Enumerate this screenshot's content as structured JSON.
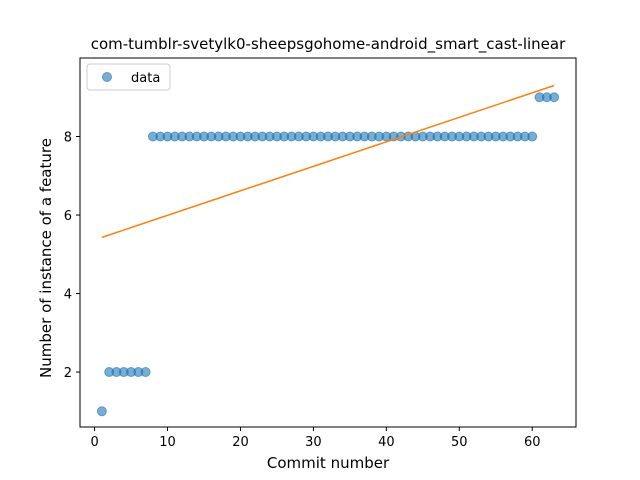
{
  "chart_data": {
    "type": "scatter",
    "title": "com-tumblr-svetylk0-sheepsgohome-android_smart_cast-linear",
    "xlabel": "Commit number",
    "ylabel": "Number of instance of a feature",
    "xlim": [
      -2,
      66
    ],
    "ylim": [
      0.6,
      10.0
    ],
    "xticks": [
      0,
      10,
      20,
      30,
      40,
      50,
      60
    ],
    "yticks": [
      2,
      4,
      6,
      8
    ],
    "legend": {
      "position": "upper-left",
      "label": "data"
    },
    "series": [
      {
        "name": "data",
        "kind": "scatter",
        "color": "#1f77b4",
        "x": [
          1,
          2,
          3,
          4,
          5,
          6,
          7,
          8,
          9,
          10,
          11,
          12,
          13,
          14,
          15,
          16,
          17,
          18,
          19,
          20,
          21,
          22,
          23,
          24,
          25,
          26,
          27,
          28,
          29,
          30,
          31,
          32,
          33,
          34,
          35,
          36,
          37,
          38,
          39,
          40,
          41,
          42,
          43,
          44,
          45,
          46,
          47,
          48,
          49,
          50,
          51,
          52,
          53,
          54,
          55,
          56,
          57,
          58,
          59,
          60,
          61,
          62,
          63
        ],
        "y": [
          1,
          2,
          2,
          2,
          2,
          2,
          2,
          8,
          8,
          8,
          8,
          8,
          8,
          8,
          8,
          8,
          8,
          8,
          8,
          8,
          8,
          8,
          8,
          8,
          8,
          8,
          8,
          8,
          8,
          8,
          8,
          8,
          8,
          8,
          8,
          8,
          8,
          8,
          8,
          8,
          8,
          8,
          8,
          8,
          8,
          8,
          8,
          8,
          8,
          8,
          8,
          8,
          8,
          8,
          8,
          8,
          8,
          8,
          8,
          8,
          9,
          9,
          9
        ]
      },
      {
        "name": "linear fit",
        "kind": "line",
        "color": "#ff7f0e",
        "x": [
          1,
          63
        ],
        "y": [
          5.43,
          9.3
        ]
      }
    ]
  }
}
